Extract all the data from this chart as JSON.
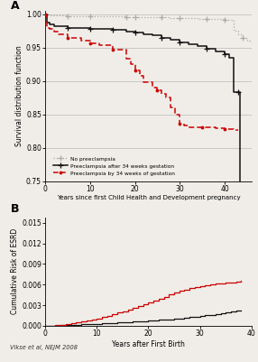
{
  "panel_A": {
    "ylabel": "Survival distribution function",
    "xlabel": "Years since first Child Health and Development pregnancy",
    "ylim": [
      0.75,
      1.005
    ],
    "xlim": [
      0,
      46
    ],
    "yticks": [
      0.75,
      0.8,
      0.85,
      0.9,
      0.95,
      1.0
    ],
    "xticks": [
      0,
      10,
      20,
      30,
      40
    ],
    "no_preeclampsia": {
      "x": [
        0,
        0.5,
        1,
        2,
        3,
        5,
        8,
        10,
        14,
        18,
        20,
        22,
        24,
        26,
        28,
        30,
        32,
        34,
        36,
        38,
        40,
        42,
        43,
        44,
        45,
        46
      ],
      "y": [
        1.0,
        0.999,
        0.9985,
        0.998,
        0.9978,
        0.9975,
        0.9972,
        0.997,
        0.9965,
        0.996,
        0.9958,
        0.9955,
        0.9952,
        0.995,
        0.9948,
        0.9945,
        0.994,
        0.9935,
        0.993,
        0.9925,
        0.991,
        0.975,
        0.97,
        0.965,
        0.96,
        0.955
      ],
      "color": "#aaaaaa",
      "marker_positions": [
        0,
        5,
        10,
        15,
        20,
        25,
        30,
        35,
        40,
        44
      ],
      "label": "No preeclampsia"
    },
    "preeclampsia_after": {
      "x": [
        0,
        0.3,
        1,
        2,
        5,
        10,
        15,
        18,
        20,
        22,
        24,
        26,
        28,
        30,
        32,
        34,
        36,
        38,
        40,
        41,
        42,
        42.5,
        43,
        43.2,
        43.4
      ],
      "y": [
        1.0,
        0.988,
        0.985,
        0.982,
        0.98,
        0.978,
        0.976,
        0.974,
        0.972,
        0.97,
        0.968,
        0.965,
        0.962,
        0.958,
        0.955,
        0.952,
        0.948,
        0.944,
        0.94,
        0.935,
        0.883,
        0.883,
        0.883,
        0.883,
        0.75
      ],
      "color": "#111111",
      "marker_positions": [
        0,
        5,
        10,
        15,
        20,
        25,
        30,
        35,
        40,
        43
      ],
      "label": "Preeclampsia after 34 weeks gestation"
    },
    "preeclampsia_by": {
      "x": [
        0,
        0.3,
        1,
        2,
        3,
        5,
        8,
        10,
        12,
        15,
        18,
        19,
        20,
        21,
        22,
        24,
        25,
        26,
        27,
        28,
        29,
        30,
        31,
        32,
        35,
        38,
        40,
        42,
        43
      ],
      "y": [
        1.0,
        0.98,
        0.978,
        0.974,
        0.97,
        0.965,
        0.96,
        0.957,
        0.953,
        0.947,
        0.934,
        0.925,
        0.916,
        0.907,
        0.898,
        0.89,
        0.886,
        0.88,
        0.875,
        0.86,
        0.85,
        0.836,
        0.833,
        0.831,
        0.83,
        0.829,
        0.828,
        0.827,
        0.827
      ],
      "color": "#cc0000",
      "marker_positions": [
        0,
        5,
        10,
        15,
        20,
        25,
        30,
        35,
        40
      ],
      "label": "Preeclampsia by 34 weeks of gestation"
    }
  },
  "panel_B": {
    "ylabel": "Cumulative Risk of ESRD",
    "xlabel": "Years after First Birth",
    "ylim": [
      0,
      0.0158
    ],
    "xlim": [
      0,
      40
    ],
    "yticks": [
      0.0,
      0.003,
      0.006,
      0.009,
      0.012,
      0.015
    ],
    "ytick_labels": [
      "0.000",
      "0.003",
      "0.006",
      "0.009",
      "0.012",
      "0.015"
    ],
    "xticks": [
      0,
      10,
      20,
      30,
      40
    ],
    "no_preeclampsia_B": {
      "x": [
        0,
        1,
        2,
        3,
        4,
        5,
        6,
        7,
        8,
        9,
        10,
        11,
        12,
        13,
        14,
        15,
        16,
        17,
        18,
        19,
        20,
        21,
        22,
        23,
        24,
        25,
        26,
        27,
        28,
        29,
        30,
        31,
        32,
        33,
        34,
        35,
        36,
        37,
        38
      ],
      "y": [
        0.0,
        2e-05,
        4e-05,
        7e-05,
        0.0001,
        0.00013,
        0.00017,
        0.0002,
        0.00023,
        0.00026,
        0.0003,
        0.00034,
        0.00038,
        0.00042,
        0.00046,
        0.0005,
        0.00055,
        0.0006,
        0.00065,
        0.0007,
        0.00075,
        0.0008,
        0.00085,
        0.0009,
        0.00095,
        0.001,
        0.00108,
        0.00116,
        0.00124,
        0.00132,
        0.0014,
        0.0015,
        0.0016,
        0.0017,
        0.0018,
        0.0019,
        0.00205,
        0.00218,
        0.00225
      ],
      "color": "#111111"
    },
    "preeclampsia_B": {
      "x": [
        0,
        1,
        2,
        3,
        4,
        5,
        6,
        7,
        8,
        9,
        10,
        11,
        12,
        13,
        14,
        15,
        16,
        17,
        18,
        19,
        20,
        21,
        22,
        23,
        24,
        25,
        26,
        27,
        28,
        29,
        30,
        31,
        32,
        33,
        34,
        35,
        36,
        37,
        38
      ],
      "y": [
        0.0,
        3e-05,
        8e-05,
        0.00015,
        0.00023,
        0.00033,
        0.00045,
        0.00058,
        0.00073,
        0.0009,
        0.00108,
        0.00128,
        0.00148,
        0.00168,
        0.0019,
        0.00213,
        0.00236,
        0.0026,
        0.00286,
        0.00313,
        0.0034,
        0.00368,
        0.00396,
        0.00424,
        0.00452,
        0.0048,
        0.00505,
        0.00528,
        0.00548,
        0.00565,
        0.0058,
        0.0059,
        0.006,
        0.0061,
        0.00618,
        0.00625,
        0.0063,
        0.0064,
        0.0065
      ],
      "color": "#cc0000"
    },
    "citation": "Vikse et al, NEJM 2008"
  },
  "fig_background": "#f0ede8"
}
